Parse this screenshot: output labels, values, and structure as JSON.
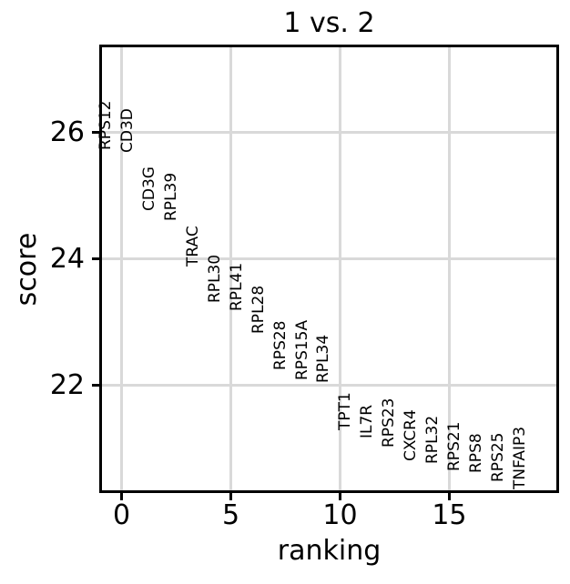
{
  "figure": {
    "title": "1 vs. 2",
    "xlabel": "ranking",
    "ylabel": "score"
  },
  "colors": {
    "background": "#ffffff",
    "text": "#000000",
    "gridline": "#d9d9d9",
    "spine": "#000000"
  },
  "chart_data": {
    "type": "scatter",
    "marker": "text-labels",
    "title": "1 vs. 2",
    "xlabel": "ranking",
    "ylabel": "score",
    "xlim": [
      -0.9,
      19.9
    ],
    "ylim": [
      20.34,
      27.35
    ],
    "xticks": [
      0,
      5,
      10,
      15
    ],
    "yticks": [
      22,
      24,
      26
    ],
    "grid": true,
    "label_rotation": 90,
    "points": [
      {
        "gene": "RPS12",
        "ranking": 0,
        "score": 25.72
      },
      {
        "gene": "CD3D",
        "ranking": 1,
        "score": 25.68
      },
      {
        "gene": "CD3G",
        "ranking": 2,
        "score": 24.76
      },
      {
        "gene": "RPL39",
        "ranking": 3,
        "score": 24.6
      },
      {
        "gene": "TRAC",
        "ranking": 4,
        "score": 23.88
      },
      {
        "gene": "RPL30",
        "ranking": 5,
        "score": 23.3
      },
      {
        "gene": "RPL41",
        "ranking": 6,
        "score": 23.17
      },
      {
        "gene": "RPL28",
        "ranking": 7,
        "score": 22.82
      },
      {
        "gene": "RPS28",
        "ranking": 8,
        "score": 22.24
      },
      {
        "gene": "RPS15A",
        "ranking": 9,
        "score": 22.08
      },
      {
        "gene": "RPL34",
        "ranking": 10,
        "score": 22.04
      },
      {
        "gene": "TPT1",
        "ranking": 11,
        "score": 21.29
      },
      {
        "gene": "IL7R",
        "ranking": 12,
        "score": 21.16
      },
      {
        "gene": "RPS23",
        "ranking": 13,
        "score": 21.02
      },
      {
        "gene": "CXCR4",
        "ranking": 14,
        "score": 20.8
      },
      {
        "gene": "RPL32",
        "ranking": 15,
        "score": 20.76
      },
      {
        "gene": "RPS21",
        "ranking": 16,
        "score": 20.64
      },
      {
        "gene": "RPS8",
        "ranking": 17,
        "score": 20.61
      },
      {
        "gene": "RPS25",
        "ranking": 18,
        "score": 20.47
      },
      {
        "gene": "TNFAIP3",
        "ranking": 19,
        "score": 20.35
      }
    ]
  }
}
